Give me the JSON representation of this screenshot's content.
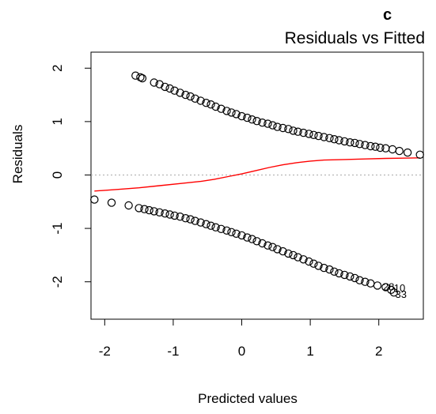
{
  "chart_data": {
    "type": "scatter",
    "panel_label": "c",
    "title": "Residuals vs Fitted",
    "xlabel": "Predicted values",
    "ylabel": "Residuals",
    "xlim": [
      -2.2,
      2.65
    ],
    "ylim": [
      -2.7,
      2.3
    ],
    "xticks": [
      -2,
      -1,
      0,
      1,
      2
    ],
    "yticks": [
      -2,
      -1,
      0,
      1,
      2
    ],
    "xtick_labels": [
      "-2",
      "-1",
      "0",
      "1",
      "2"
    ],
    "ytick_labels": [
      "-2",
      "-1",
      "0",
      "1",
      "2"
    ],
    "grid": false,
    "reference_line": {
      "y": 0,
      "style": "dotted",
      "color": "#aaaaaa"
    },
    "series": [
      {
        "kind": "points",
        "marker": "open-circle",
        "color": "#000000",
        "points": [
          [
            -1.55,
            1.86
          ],
          [
            -1.48,
            1.83
          ],
          [
            -1.45,
            1.81
          ],
          [
            -1.28,
            1.73
          ],
          [
            -1.2,
            1.7
          ],
          [
            -1.12,
            1.65
          ],
          [
            -1.05,
            1.62
          ],
          [
            -0.98,
            1.58
          ],
          [
            -0.9,
            1.54
          ],
          [
            -0.82,
            1.5
          ],
          [
            -0.75,
            1.47
          ],
          [
            -0.68,
            1.43
          ],
          [
            -0.6,
            1.39
          ],
          [
            -0.52,
            1.35
          ],
          [
            -0.45,
            1.32
          ],
          [
            -0.38,
            1.28
          ],
          [
            -0.3,
            1.24
          ],
          [
            -0.22,
            1.2
          ],
          [
            -0.15,
            1.17
          ],
          [
            -0.08,
            1.14
          ],
          [
            0.0,
            1.1
          ],
          [
            0.08,
            1.07
          ],
          [
            0.15,
            1.04
          ],
          [
            0.22,
            1.01
          ],
          [
            0.3,
            0.98
          ],
          [
            0.38,
            0.96
          ],
          [
            0.45,
            0.93
          ],
          [
            0.52,
            0.9
          ],
          [
            0.6,
            0.88
          ],
          [
            0.68,
            0.86
          ],
          [
            0.75,
            0.83
          ],
          [
            0.82,
            0.81
          ],
          [
            0.9,
            0.79
          ],
          [
            0.98,
            0.77
          ],
          [
            1.05,
            0.75
          ],
          [
            1.12,
            0.73
          ],
          [
            1.2,
            0.71
          ],
          [
            1.28,
            0.69
          ],
          [
            1.35,
            0.67
          ],
          [
            1.42,
            0.65
          ],
          [
            1.5,
            0.63
          ],
          [
            1.58,
            0.61
          ],
          [
            1.65,
            0.6
          ],
          [
            1.72,
            0.58
          ],
          [
            1.8,
            0.56
          ],
          [
            1.88,
            0.54
          ],
          [
            1.95,
            0.53
          ],
          [
            2.02,
            0.51
          ],
          [
            2.1,
            0.5
          ],
          [
            2.2,
            0.48
          ],
          [
            2.3,
            0.45
          ],
          [
            2.42,
            0.42
          ],
          [
            2.6,
            0.38
          ],
          [
            -2.15,
            -0.46
          ],
          [
            -1.9,
            -0.52
          ],
          [
            -1.65,
            -0.57
          ],
          [
            -1.5,
            -0.62
          ],
          [
            -1.42,
            -0.64
          ],
          [
            -1.35,
            -0.66
          ],
          [
            -1.28,
            -0.68
          ],
          [
            -1.2,
            -0.7
          ],
          [
            -1.12,
            -0.72
          ],
          [
            -1.05,
            -0.74
          ],
          [
            -0.98,
            -0.76
          ],
          [
            -0.9,
            -0.78
          ],
          [
            -0.82,
            -0.81
          ],
          [
            -0.75,
            -0.83
          ],
          [
            -0.68,
            -0.86
          ],
          [
            -0.6,
            -0.89
          ],
          [
            -0.52,
            -0.92
          ],
          [
            -0.45,
            -0.95
          ],
          [
            -0.38,
            -0.98
          ],
          [
            -0.3,
            -1.01
          ],
          [
            -0.22,
            -1.04
          ],
          [
            -0.15,
            -1.07
          ],
          [
            -0.08,
            -1.1
          ],
          [
            0.0,
            -1.13
          ],
          [
            0.08,
            -1.17
          ],
          [
            0.15,
            -1.2
          ],
          [
            0.22,
            -1.24
          ],
          [
            0.3,
            -1.28
          ],
          [
            0.38,
            -1.32
          ],
          [
            0.45,
            -1.35
          ],
          [
            0.52,
            -1.39
          ],
          [
            0.6,
            -1.43
          ],
          [
            0.68,
            -1.47
          ],
          [
            0.75,
            -1.5
          ],
          [
            0.82,
            -1.54
          ],
          [
            0.9,
            -1.58
          ],
          [
            0.98,
            -1.62
          ],
          [
            1.05,
            -1.66
          ],
          [
            1.12,
            -1.7
          ],
          [
            1.2,
            -1.74
          ],
          [
            1.28,
            -1.77
          ],
          [
            1.35,
            -1.81
          ],
          [
            1.42,
            -1.84
          ],
          [
            1.5,
            -1.87
          ],
          [
            1.58,
            -1.9
          ],
          [
            1.65,
            -1.93
          ],
          [
            1.72,
            -1.97
          ],
          [
            1.8,
            -2.0
          ],
          [
            1.88,
            -2.03
          ],
          [
            1.98,
            -2.07
          ],
          [
            2.1,
            -2.1
          ],
          [
            2.18,
            -2.15
          ],
          [
            2.22,
            -2.2
          ]
        ]
      },
      {
        "kind": "smooth-line",
        "color": "#ff0000",
        "points": [
          [
            -2.15,
            -0.3
          ],
          [
            -1.8,
            -0.27
          ],
          [
            -1.5,
            -0.24
          ],
          [
            -1.2,
            -0.2
          ],
          [
            -0.9,
            -0.16
          ],
          [
            -0.6,
            -0.12
          ],
          [
            -0.4,
            -0.08
          ],
          [
            -0.2,
            -0.03
          ],
          [
            0.0,
            0.02
          ],
          [
            0.2,
            0.08
          ],
          [
            0.4,
            0.14
          ],
          [
            0.6,
            0.19
          ],
          [
            0.8,
            0.23
          ],
          [
            1.0,
            0.26
          ],
          [
            1.2,
            0.28
          ],
          [
            1.5,
            0.29
          ],
          [
            1.8,
            0.3
          ],
          [
            2.1,
            0.31
          ],
          [
            2.6,
            0.32
          ]
        ]
      }
    ],
    "point_labels": [
      {
        "text": "28",
        "x": 2.06,
        "y": -2.16
      },
      {
        "text": "10",
        "x": 2.22,
        "y": -2.18
      },
      {
        "text": "33",
        "x": 2.24,
        "y": -2.3
      }
    ]
  }
}
